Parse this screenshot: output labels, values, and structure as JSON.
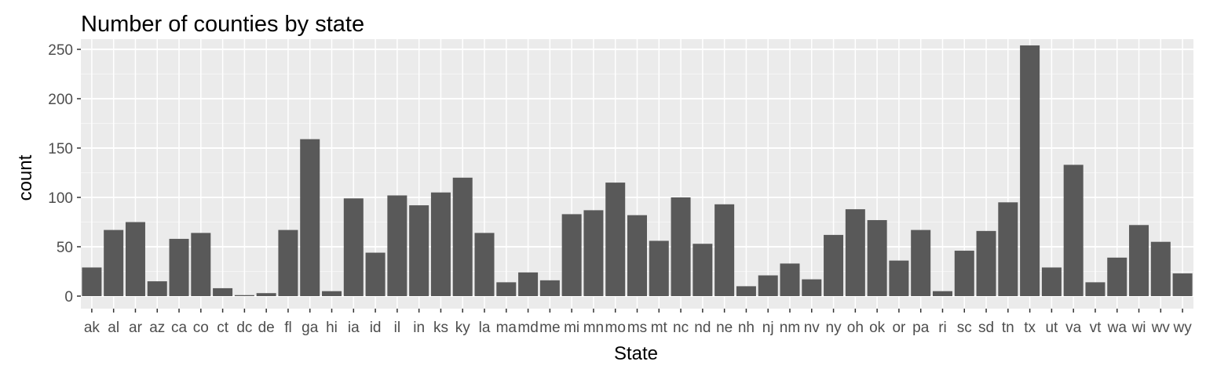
{
  "chart_data": {
    "type": "bar",
    "title": "Number of counties by state",
    "xlabel": "State",
    "ylabel": "count",
    "ylim": [
      0,
      250
    ],
    "yticks": [
      0,
      50,
      100,
      150,
      200,
      250
    ],
    "categories": [
      "ak",
      "al",
      "ar",
      "az",
      "ca",
      "co",
      "ct",
      "dc",
      "de",
      "fl",
      "ga",
      "hi",
      "ia",
      "id",
      "il",
      "in",
      "ks",
      "ky",
      "la",
      "ma",
      "md",
      "me",
      "mi",
      "mn",
      "mo",
      "ms",
      "mt",
      "nc",
      "nd",
      "ne",
      "nh",
      "nj",
      "nm",
      "nv",
      "ny",
      "oh",
      "ok",
      "or",
      "pa",
      "ri",
      "sc",
      "sd",
      "tn",
      "tx",
      "ut",
      "va",
      "vt",
      "wa",
      "wi",
      "wv",
      "wy"
    ],
    "values": [
      29,
      67,
      75,
      15,
      58,
      64,
      8,
      1,
      3,
      67,
      159,
      5,
      99,
      44,
      102,
      92,
      105,
      120,
      64,
      14,
      24,
      16,
      83,
      87,
      115,
      82,
      56,
      100,
      53,
      93,
      10,
      21,
      33,
      17,
      62,
      88,
      77,
      36,
      67,
      5,
      46,
      66,
      95,
      254,
      29,
      133,
      14,
      39,
      72,
      55,
      23
    ],
    "grid": true,
    "legend": "none",
    "colors": {
      "bar": "#595959",
      "panel_bg": "#ebebeb",
      "grid_major": "#ffffff",
      "grid_minor": "#f5f5f5"
    }
  }
}
